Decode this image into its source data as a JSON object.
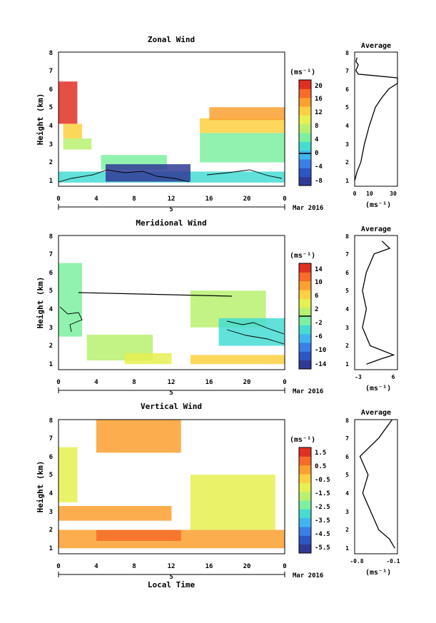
{
  "panels": [
    {
      "title": "Zonal Wind",
      "ylabel": "Height (km)",
      "yticks": [
        "1",
        "2",
        "3",
        "4",
        "5",
        "6",
        "7",
        "8"
      ],
      "xticks": [
        "0",
        "4",
        "8",
        "12",
        "16",
        "20",
        "0"
      ],
      "date_day": "5",
      "date_month": "Mar 2016",
      "cb_unit": "(ms⁻¹)",
      "cb_ticks": [
        "20",
        "16",
        "12",
        "8",
        "4",
        "0",
        "-4",
        "-8"
      ],
      "avg_title": "Average",
      "avg_xticks": [
        "0",
        "10",
        "30"
      ],
      "avg_unit": "(ms⁻¹)"
    },
    {
      "title": "Meridional Wind",
      "ylabel": "Height (km)",
      "yticks": [
        "1",
        "2",
        "3",
        "4",
        "5",
        "6",
        "7",
        "8"
      ],
      "xticks": [
        "0",
        "4",
        "8",
        "12",
        "16",
        "20",
        "0"
      ],
      "date_day": "5",
      "date_month": "Mar 2016",
      "cb_unit": "(ms⁻¹)",
      "cb_ticks": [
        "14",
        "10",
        "6",
        "2",
        "-2",
        "-6",
        "-10",
        "-14"
      ],
      "avg_title": "Average",
      "avg_xticks": [
        "-3",
        "6"
      ],
      "avg_unit": "(ms⁻¹)"
    },
    {
      "title": "Vertical Wind",
      "ylabel": "Height (km)",
      "yticks": [
        "1",
        "2",
        "3",
        "4",
        "5",
        "6",
        "7",
        "8"
      ],
      "xticks": [
        "0",
        "4",
        "8",
        "12",
        "16",
        "20",
        "0"
      ],
      "date_day": "5",
      "date_month": "Mar 2016",
      "xlabel": "Local Time",
      "cb_unit": "(ms⁻¹)",
      "cb_ticks": [
        "1.5",
        "0.5",
        "-0.5",
        "-1.5",
        "-2.5",
        "-3.5",
        "-4.5",
        "-5.5"
      ],
      "avg_title": "Average",
      "avg_xticks": [
        "-0.8",
        "-0.1"
      ],
      "avg_unit": "(ms⁻¹)"
    }
  ],
  "colormap": [
    "#303a96",
    "#2d55c4",
    "#3b7ee6",
    "#3fb6f0",
    "#45dcd2",
    "#7cf0a0",
    "#b8f070",
    "#e6f050",
    "#fcd040",
    "#fca030",
    "#f66c28",
    "#e03024"
  ],
  "chart_data": [
    {
      "type": "heatmap",
      "title": "Zonal Wind",
      "ylabel": "Height (km)",
      "xlim": [
        0,
        24
      ],
      "ylim": [
        0.7,
        8
      ],
      "clim": [
        -8,
        22
      ],
      "colorbar_unit": "(ms⁻¹)",
      "colorbar_ticks": [
        20,
        16,
        12,
        8,
        4,
        0,
        -4,
        -8
      ],
      "series": [
        {
          "x0": 0.0,
          "x1": 2.0,
          "y0": 4.1,
          "y1": 6.4,
          "value": 21
        },
        {
          "x0": 0.5,
          "x1": 2.5,
          "y0": 3.3,
          "y1": 4.1,
          "value": 14
        },
        {
          "x0": 0.5,
          "x1": 3.5,
          "y0": 2.7,
          "y1": 3.3,
          "value": 9
        },
        {
          "x0": 4.5,
          "x1": 11.5,
          "y0": 1.6,
          "y1": 2.4,
          "value": 6
        },
        {
          "x0": 0.0,
          "x1": 24.0,
          "y0": 0.9,
          "y1": 1.5,
          "value": 2
        },
        {
          "x0": 5.0,
          "x1": 14.0,
          "y0": 0.95,
          "y1": 1.9,
          "value": -6
        },
        {
          "x0": 15.0,
          "x1": 24.0,
          "y0": 2.0,
          "y1": 3.6,
          "value": 6
        },
        {
          "x0": 15.0,
          "x1": 24.0,
          "y0": 3.6,
          "y1": 4.4,
          "value": 12
        },
        {
          "x0": 16.0,
          "x1": 24.0,
          "y0": 4.3,
          "y1": 5.0,
          "value": 16
        }
      ],
      "average_profile": {
        "title": "Average",
        "unit": "(ms⁻¹)",
        "xlim": [
          0,
          35
        ],
        "xticks": [
          0,
          10,
          30
        ],
        "height": [
          1.0,
          1.5,
          2.0,
          3.0,
          4.0,
          5.0,
          5.5,
          6.0,
          6.3,
          6.6,
          6.8,
          7.0,
          7.3,
          7.5,
          7.7
        ],
        "value": [
          0,
          2,
          5,
          8,
          12,
          17,
          22,
          28,
          35,
          35,
          3,
          1,
          3,
          1,
          2
        ]
      }
    },
    {
      "type": "heatmap",
      "title": "Meridional Wind",
      "ylabel": "Height (km)",
      "xlim": [
        0,
        24
      ],
      "ylim": [
        0.7,
        8
      ],
      "clim": [
        -16,
        16
      ],
      "colorbar_unit": "(ms⁻¹)",
      "colorbar_ticks": [
        14,
        10,
        6,
        2,
        -2,
        -6,
        -10,
        -14
      ],
      "series": [
        {
          "x0": 0.0,
          "x1": 2.5,
          "y0": 2.5,
          "y1": 6.5,
          "value": -2
        },
        {
          "x0": 3.0,
          "x1": 10.0,
          "y0": 1.2,
          "y1": 2.6,
          "value": 1
        },
        {
          "x0": 7.0,
          "x1": 12.0,
          "y0": 1.0,
          "y1": 1.6,
          "value": 5
        },
        {
          "x0": 14.0,
          "x1": 22.0,
          "y0": 3.0,
          "y1": 5.0,
          "value": 1
        },
        {
          "x0": 17.0,
          "x1": 24.0,
          "y0": 2.0,
          "y1": 3.5,
          "value": -4
        },
        {
          "x0": 14.0,
          "x1": 24.0,
          "y0": 1.0,
          "y1": 1.5,
          "value": 6
        }
      ],
      "average_profile": {
        "title": "Average",
        "unit": "(ms⁻¹)",
        "xlim": [
          -4,
          7
        ],
        "xticks": [
          -3,
          6
        ],
        "height": [
          1.0,
          1.3,
          1.5,
          2.0,
          3.0,
          4.0,
          5.0,
          6.0,
          7.0,
          7.3,
          7.7
        ],
        "value": [
          -1,
          3,
          6,
          0,
          -2,
          -1,
          -2,
          -1,
          1,
          5,
          3
        ]
      }
    },
    {
      "type": "heatmap",
      "title": "Vertical Wind",
      "xlabel": "Local Time",
      "ylabel": "Height (km)",
      "xlim": [
        0,
        24
      ],
      "ylim": [
        0.7,
        8
      ],
      "clim": [
        -6,
        2
      ],
      "colorbar_unit": "(ms⁻¹)",
      "colorbar_ticks": [
        1.5,
        0.5,
        -0.5,
        -1.5,
        -2.5,
        -3.5,
        -4.5,
        -5.5
      ],
      "series": [
        {
          "x0": 0.0,
          "x1": 2.0,
          "y0": 3.5,
          "y1": 6.5,
          "value": -1.2
        },
        {
          "x0": 0.0,
          "x1": 12.0,
          "y0": 2.5,
          "y1": 3.3,
          "value": 0.4
        },
        {
          "x0": 0.0,
          "x1": 24.0,
          "y0": 1.0,
          "y1": 2.0,
          "value": 0.2
        },
        {
          "x0": 4.0,
          "x1": 13.0,
          "y0": 1.4,
          "y1": 2.0,
          "value": 0.8
        },
        {
          "x0": 14.0,
          "x1": 23.0,
          "y0": 2.0,
          "y1": 5.0,
          "value": -0.8
        },
        {
          "x0": 4.0,
          "x1": 13.0,
          "y0": 6.2,
          "y1": 8.0,
          "value": 0.0
        }
      ],
      "average_profile": {
        "title": "Average",
        "unit": "(ms⁻¹)",
        "xlim": [
          -0.85,
          -0.05
        ],
        "xticks": [
          -0.8,
          -0.1
        ],
        "height": [
          1.0,
          1.5,
          2.0,
          3.0,
          4.0,
          5.0,
          6.0,
          7.0,
          8.0
        ],
        "value": [
          -0.1,
          -0.2,
          -0.4,
          -0.55,
          -0.7,
          -0.6,
          -0.75,
          -0.4,
          -0.15
        ]
      }
    }
  ]
}
